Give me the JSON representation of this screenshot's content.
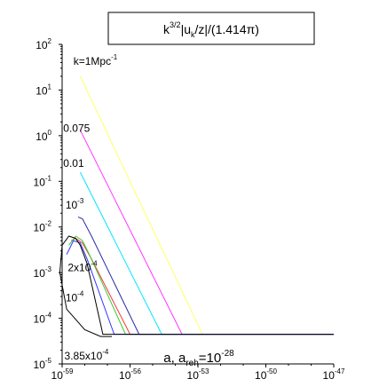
{
  "chart_data": {
    "type": "line",
    "title": {
      "main": "k",
      "sup1": "3/2",
      "mid": "|u",
      "sub": "k",
      "end": "/z|/(1.414π)"
    },
    "xlabel": {
      "pre": "a, a",
      "sub": "reh",
      "post": "=10",
      "sup": "-28"
    },
    "ylabel": "",
    "x_scale": "log",
    "y_scale": "log",
    "xlim_exp": [
      -59,
      -47
    ],
    "ylim_exp": [
      -5,
      2
    ],
    "x_ticks": [
      {
        "base": "10",
        "exp": "-59",
        "value": -59
      },
      {
        "base": "10",
        "exp": "-56",
        "value": -56
      },
      {
        "base": "10",
        "exp": "-53",
        "value": -53
      },
      {
        "base": "10",
        "exp": "-50",
        "value": -50
      },
      {
        "base": "10",
        "exp": "-47",
        "value": -47
      }
    ],
    "y_ticks": [
      {
        "base": "10",
        "exp": "2",
        "value": 2
      },
      {
        "base": "10",
        "exp": "1",
        "value": 1
      },
      {
        "base": "10",
        "exp": "0",
        "value": 0
      },
      {
        "base": "10",
        "exp": "-1",
        "value": -1
      },
      {
        "base": "10",
        "exp": "-2",
        "value": -2
      },
      {
        "base": "10",
        "exp": "-3",
        "value": -3
      },
      {
        "base": "10",
        "exp": "-4",
        "value": -4
      },
      {
        "base": "10",
        "exp": "-5",
        "value": -5
      }
    ],
    "grid": false,
    "legend": "none",
    "series": [
      {
        "color": "#ffff66",
        "points": [
          [
            -58.2,
            1.3
          ],
          [
            -52.8,
            -4.35
          ],
          [
            -47,
            -4.35
          ]
        ]
      },
      {
        "color": "#ff33ff",
        "points": [
          [
            -58.2,
            0.12
          ],
          [
            -53.7,
            -4.35
          ],
          [
            -47,
            -4.35
          ]
        ]
      },
      {
        "color": "#00e5ff",
        "points": [
          [
            -58.2,
            -0.8
          ],
          [
            -54.6,
            -4.35
          ],
          [
            -47,
            -4.35
          ]
        ]
      },
      {
        "color": "#2a2aa8",
        "points": [
          [
            -58.3,
            -1.78
          ],
          [
            -58.1,
            -1.82
          ],
          [
            -57.7,
            -2.2
          ],
          [
            -55.6,
            -4.35
          ],
          [
            -47,
            -4.35
          ]
        ]
      },
      {
        "color": "#ff3333",
        "points": [
          [
            -58.6,
            -2.3
          ],
          [
            -58.4,
            -2.25
          ],
          [
            -58.1,
            -2.35
          ],
          [
            -57.7,
            -2.7
          ],
          [
            -56.0,
            -4.35
          ],
          [
            -47,
            -4.35
          ]
        ]
      },
      {
        "color": "#33cc33",
        "points": [
          [
            -58.7,
            -2.4
          ],
          [
            -58.4,
            -2.2
          ],
          [
            -58.1,
            -2.3
          ],
          [
            -57.8,
            -2.6
          ],
          [
            -56.2,
            -4.35
          ],
          [
            -47,
            -4.35
          ]
        ]
      },
      {
        "color": "#3333ff",
        "points": [
          [
            -58.8,
            -2.6
          ],
          [
            -58.5,
            -2.3
          ],
          [
            -58.2,
            -2.35
          ],
          [
            -57.9,
            -2.7
          ],
          [
            -56.7,
            -4.35
          ],
          [
            -47,
            -4.35
          ]
        ]
      },
      {
        "color": "#000000",
        "points": [
          [
            -56.8,
            -4.4
          ],
          [
            -57.3,
            -4.4
          ],
          [
            -58.0,
            -4.25
          ],
          [
            -58.8,
            -3.8
          ],
          [
            -59.1,
            -3.0
          ],
          [
            -59.0,
            -2.4
          ],
          [
            -58.7,
            -2.2
          ],
          [
            -58.4,
            -2.25
          ],
          [
            -58.2,
            -2.4
          ],
          [
            -57.9,
            -2.8
          ],
          [
            -57.2,
            -4.35
          ],
          [
            -47,
            -4.35
          ]
        ]
      }
    ],
    "annotations": [
      {
        "name": "k-1",
        "base": "k=1Mpc",
        "exp": "-1",
        "x": -58.5,
        "y": 1.55
      },
      {
        "name": "k-0075",
        "base": "0.075",
        "exp": "",
        "x": -58.95,
        "y": 0.08
      },
      {
        "name": "k-001",
        "base": "0.01",
        "exp": "",
        "x": -58.95,
        "y": -0.68
      },
      {
        "name": "k-1e-3",
        "base": "10",
        "exp": "-3",
        "x": -58.85,
        "y": -1.6
      },
      {
        "name": "k-2e-4",
        "base": "2x10",
        "exp": "-4",
        "x": -58.75,
        "y": -2.97
      },
      {
        "name": "k-1e-4",
        "base": "10",
        "exp": "-4",
        "x": -58.85,
        "y": -3.63
      },
      {
        "name": "k-385e-4",
        "base": "3.85x10",
        "exp": "-4",
        "x": -58.9,
        "y": -4.9
      }
    ]
  }
}
